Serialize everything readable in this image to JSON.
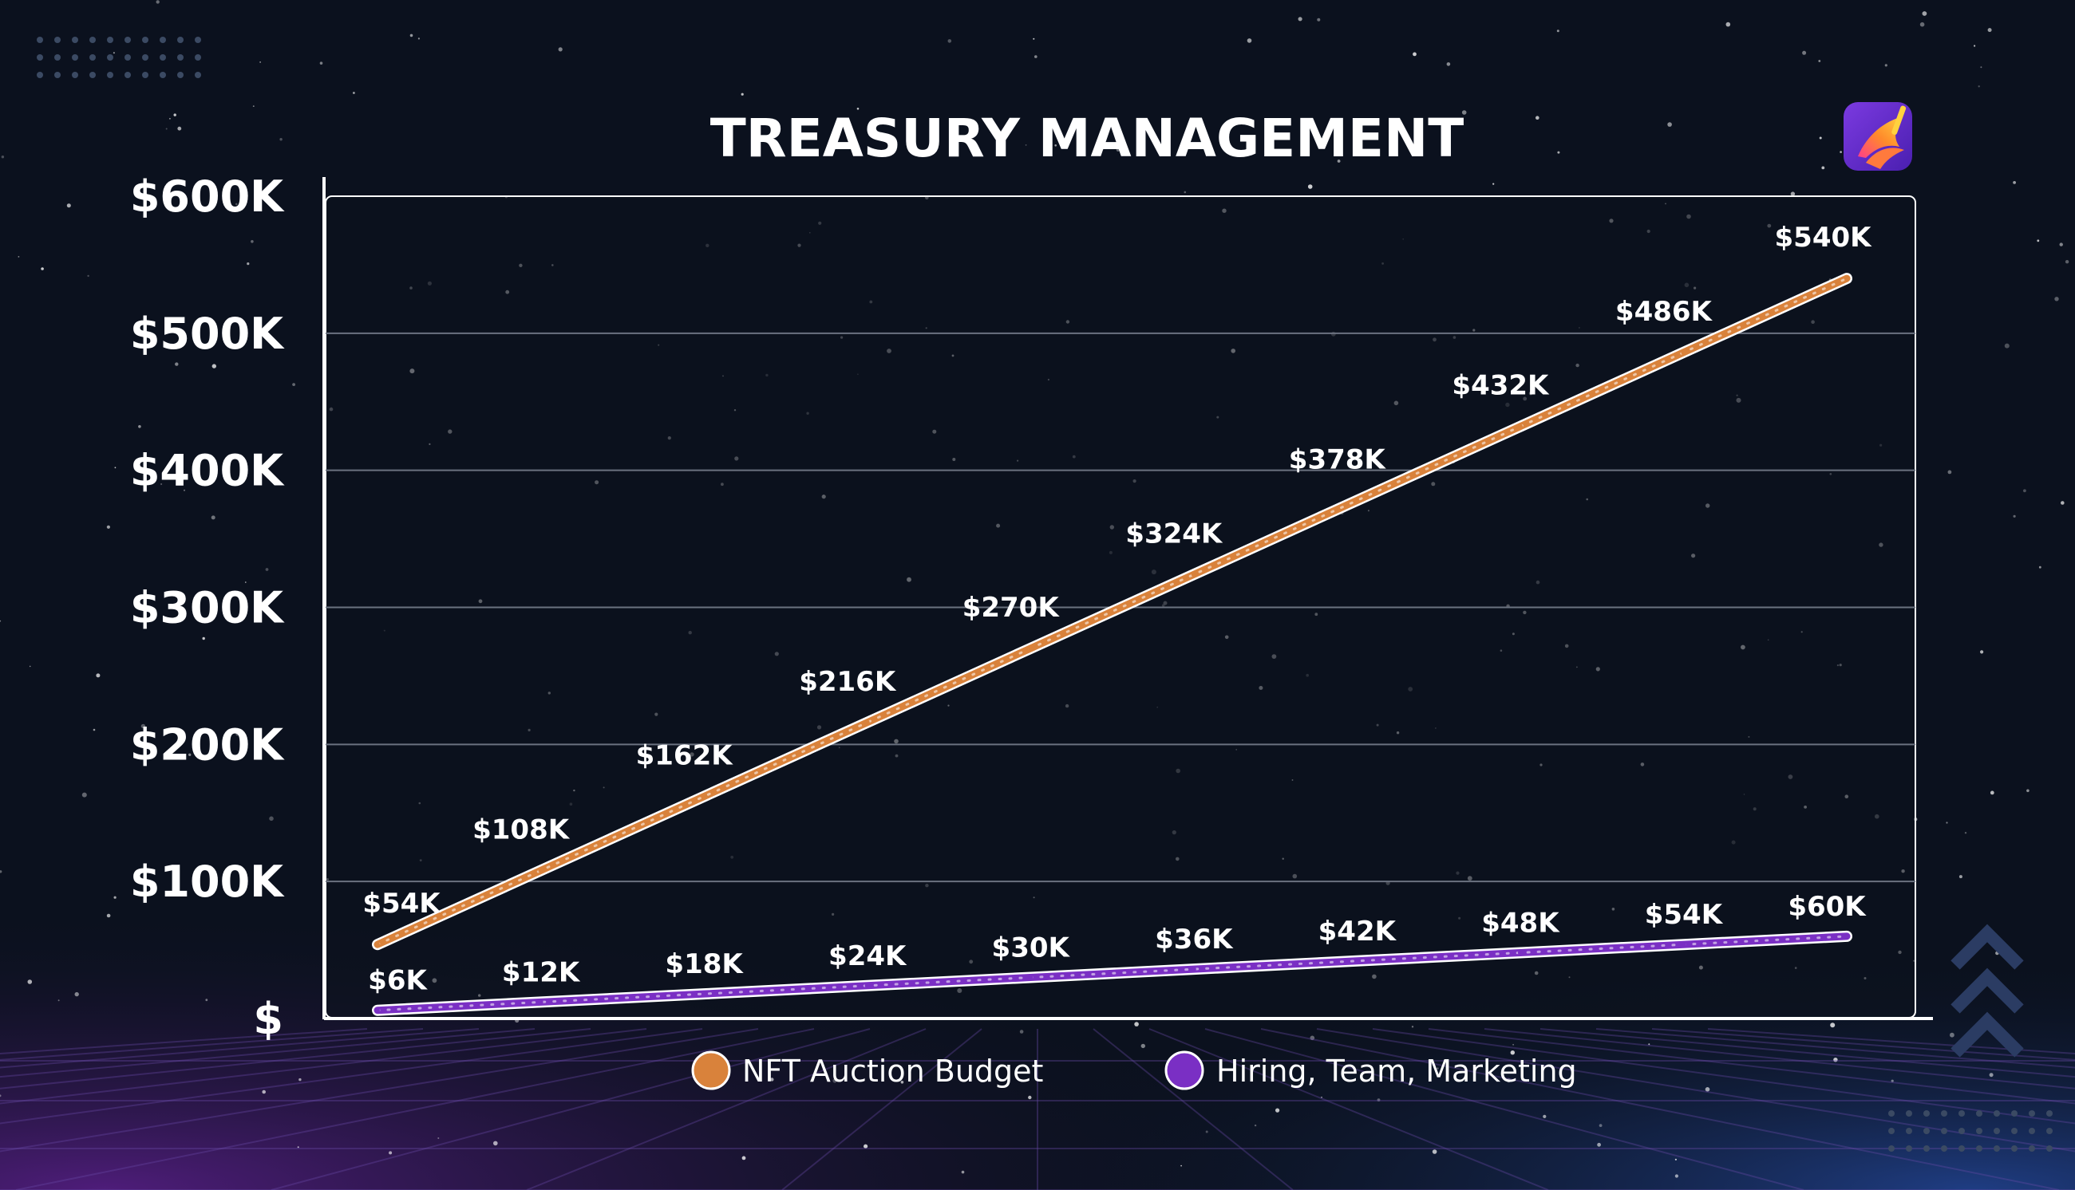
{
  "colors": {
    "background": "#0b111e",
    "grid": "#6b7280",
    "axis": "#ffffff",
    "nft_series": "#d9823b",
    "hiring_series": "#7a2fc4",
    "logo": "#6a2bd9"
  },
  "icons": {
    "app_logo": "phoenix-brush-logo",
    "decoration": "chevron-up-icon"
  },
  "chart_data": {
    "type": "line",
    "title": "TREASURY MANAGEMENT",
    "xlabel": "",
    "ylabel": "",
    "x": [
      1,
      2,
      3,
      4,
      5,
      6,
      7,
      8,
      9,
      10
    ],
    "ylim": [
      0,
      600000
    ],
    "yticks": [
      0,
      100000,
      200000,
      300000,
      400000,
      500000,
      600000
    ],
    "ytick_labels": [
      "$",
      "$100K",
      "$200K",
      "$300K",
      "$400K",
      "$500K",
      "$600K"
    ],
    "grid": true,
    "legend_position": "bottom-center",
    "series": [
      {
        "name": "NFT Auction Budget",
        "color": "#d9823b",
        "values": [
          54000,
          108000,
          162000,
          216000,
          270000,
          324000,
          378000,
          432000,
          486000,
          540000
        ],
        "labels": [
          "$54K",
          "$108K",
          "$162K",
          "$216K",
          "$270K",
          "$324K",
          "$378K",
          "$432K",
          "$486K",
          "$540K"
        ]
      },
      {
        "name": "Hiring, Team, Marketing",
        "color": "#7a2fc4",
        "values": [
          6000,
          12000,
          18000,
          24000,
          30000,
          36000,
          42000,
          48000,
          54000,
          60000
        ],
        "labels": [
          "$6K",
          "$12K",
          "$18K",
          "$24K",
          "$30K",
          "$36K",
          "$42K",
          "$48K",
          "$54K",
          "$60K"
        ]
      }
    ]
  }
}
